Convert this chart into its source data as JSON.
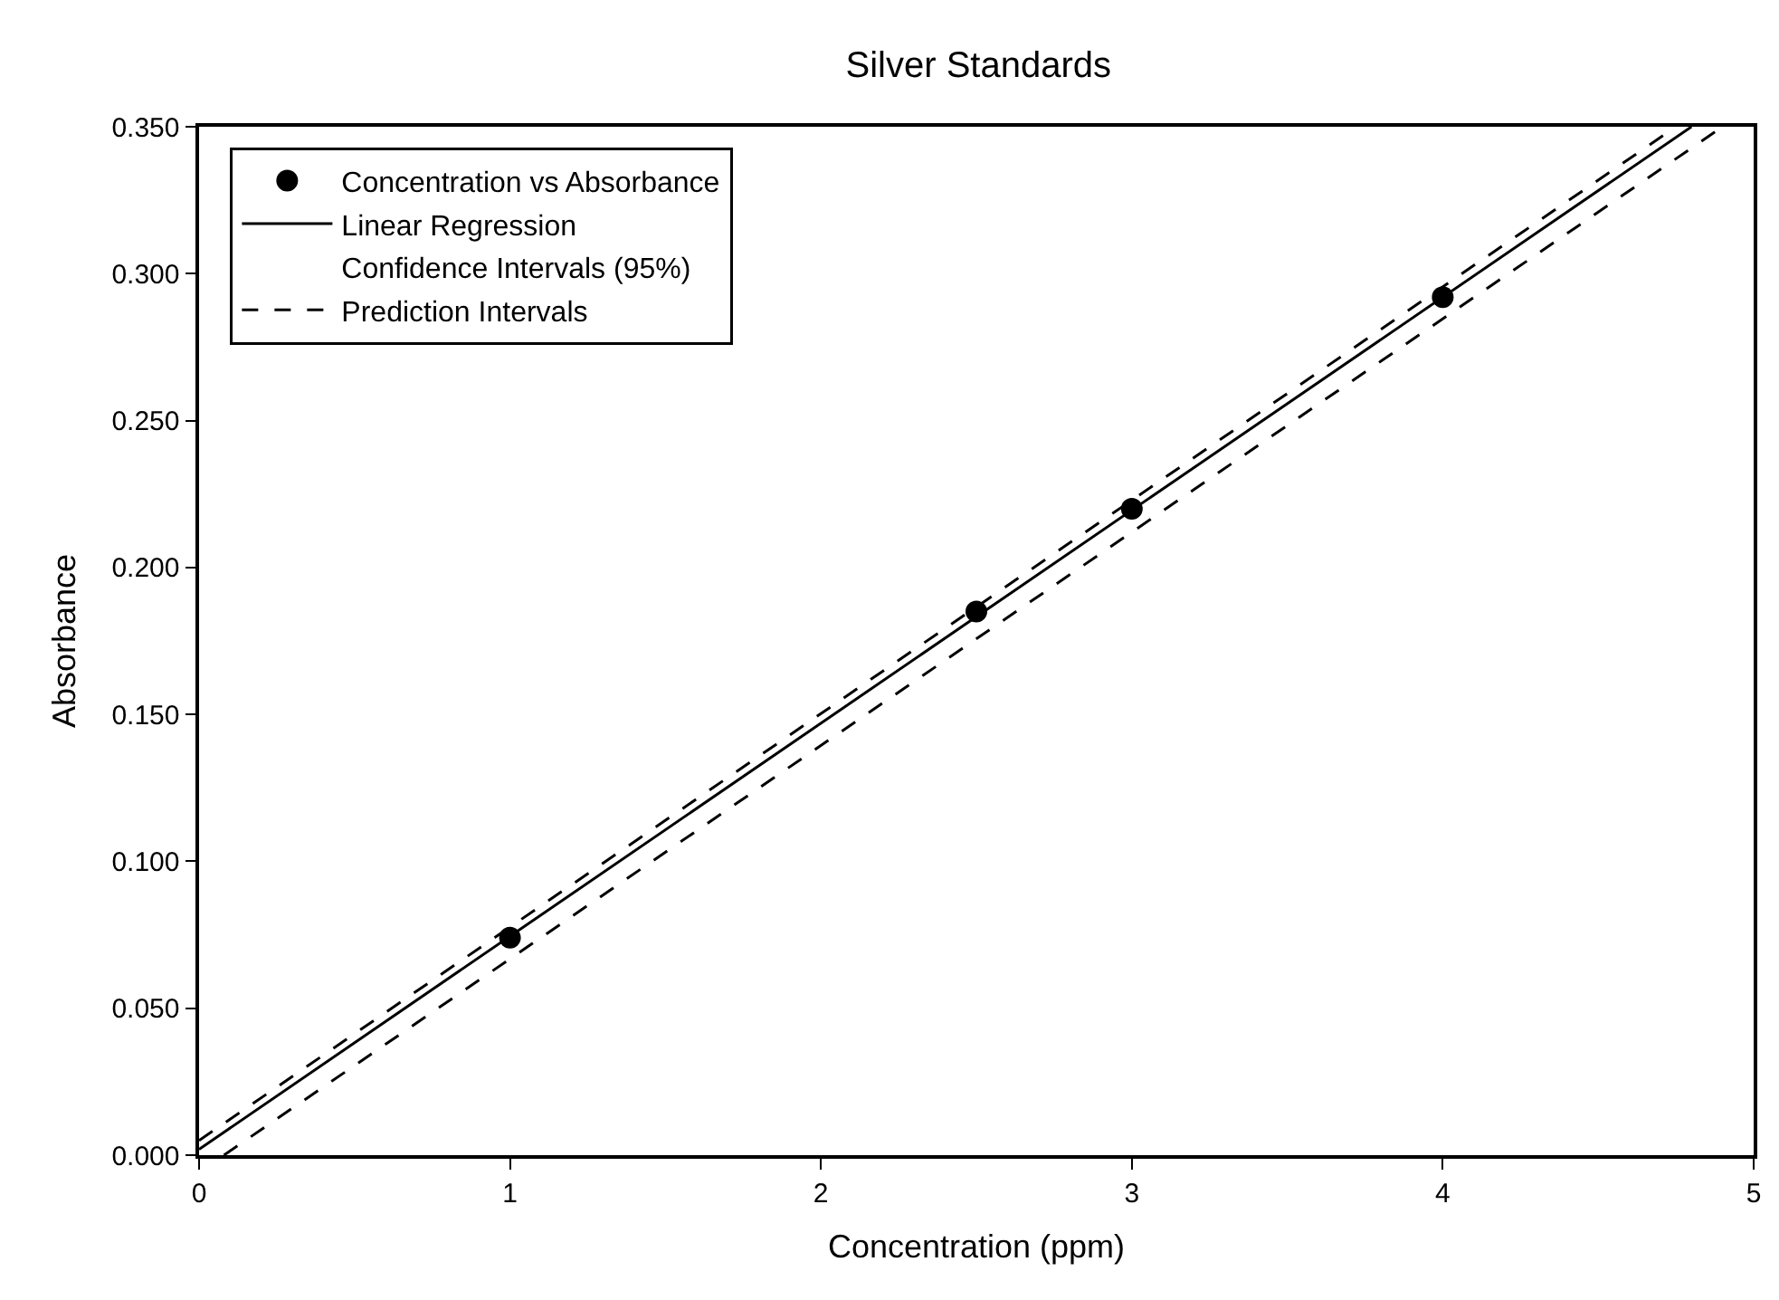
{
  "chart_data": {
    "type": "scatter",
    "title": "Silver Standards",
    "xlabel": "Concentration (ppm)",
    "ylabel": "Absorbance",
    "xlim": [
      0,
      5
    ],
    "xticks": [
      0,
      1,
      2,
      3,
      4,
      5
    ],
    "ylim": [
      0,
      0.35
    ],
    "yticks": [
      {
        "value": 0,
        "label": "0.000"
      },
      {
        "value": 0.05,
        "label": "0.050"
      },
      {
        "value": 0.1,
        "label": "0.100"
      },
      {
        "value": 0.15,
        "label": "0.150"
      },
      {
        "value": 0.2,
        "label": "0.200"
      },
      {
        "value": 0.25,
        "label": "0.250"
      },
      {
        "value": 0.3,
        "label": "0.300"
      },
      {
        "value": 0.35,
        "label": "0.350"
      }
    ],
    "legend": "top left",
    "series": [
      {
        "name": "Concentration vs Absorbance",
        "marker": "circle",
        "color": "#000000",
        "x": [
          1,
          2.5,
          3,
          4
        ],
        "values": [
          0.074,
          0.185,
          0.22,
          0.292
        ]
      },
      {
        "name": "Linear Regression",
        "type": "line",
        "marker": "none",
        "line_style": "solid",
        "color": "#000000",
        "x": [
          0,
          4.8
        ],
        "values": [
          0.002,
          0.35
        ]
      },
      {
        "name": "Confidence Intervals (95%)",
        "type": "line",
        "marker": "none"
      },
      {
        "name": "Prediction Intervals",
        "type": "line",
        "marker": "none",
        "line_style": "dashed",
        "color": "#000000",
        "x": [
          0,
          4.75
        ],
        "values": [
          0.005,
          0.35
        ]
      },
      {
        "type": "line",
        "marker": "none",
        "line_style": "dashed",
        "color": "#000000",
        "x": [
          0.08,
          4.9
        ],
        "values": [
          0,
          0.35
        ]
      }
    ]
  }
}
